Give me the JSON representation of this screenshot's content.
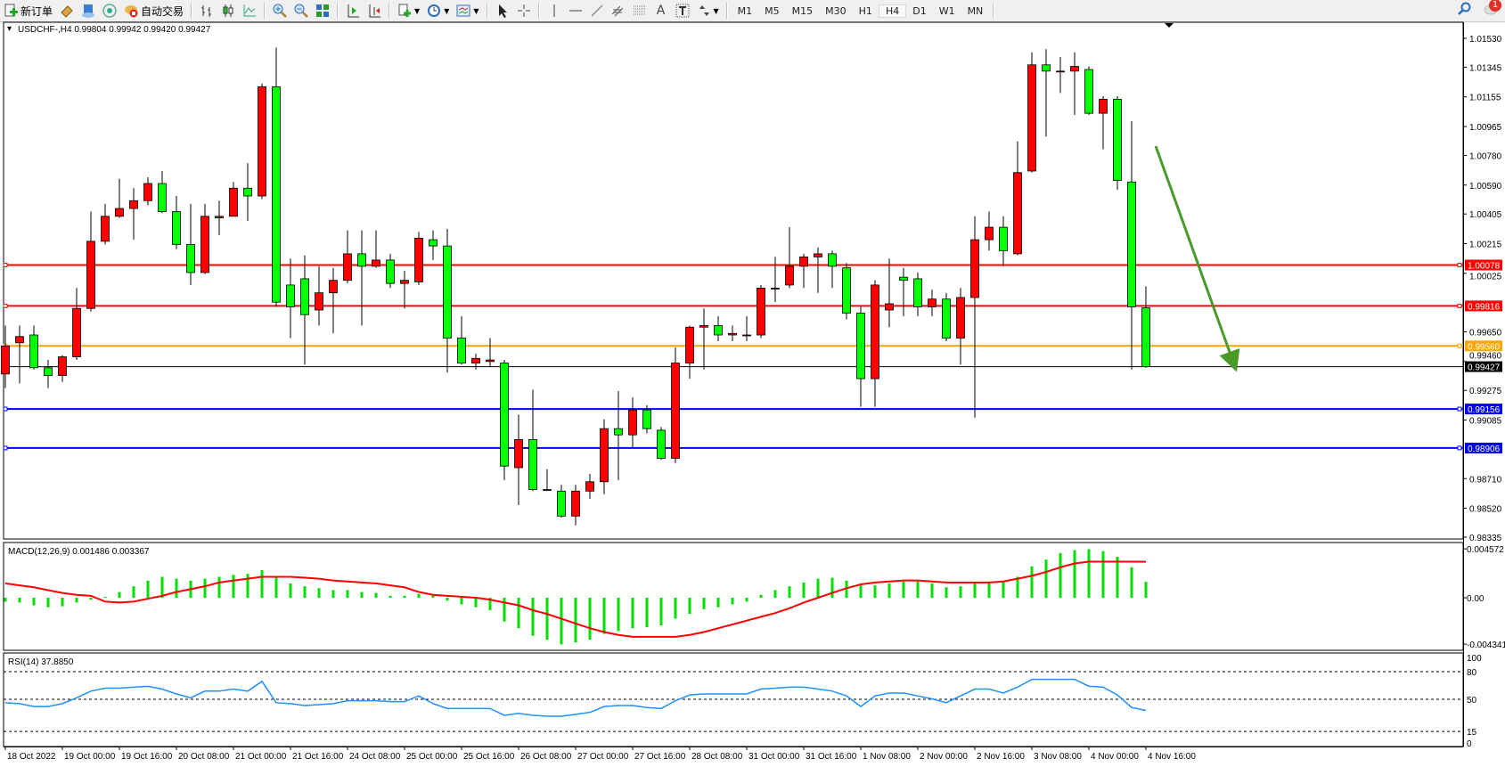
{
  "toolbar": {
    "new_order": "新订单",
    "auto_trading": "自动交易",
    "timeframes": [
      "M1",
      "M5",
      "M15",
      "M30",
      "H1",
      "H4",
      "D1",
      "W1",
      "MN"
    ],
    "active_timeframe": "H4",
    "notification_count": "1",
    "icons": [
      "new-order-icon",
      "history-icon",
      "market-watch-icon",
      "signal-icon",
      "auto-trading-icon",
      "bar-chart-icon",
      "candlestick-icon",
      "line-chart-icon",
      "zoom-in-icon",
      "zoom-out-icon",
      "tile-windows-icon",
      "auto-scroll-icon",
      "chart-shift-icon",
      "indicators-icon",
      "periods-icon",
      "templates-icon",
      "cursor-icon",
      "crosshair-icon",
      "vertical-line-icon",
      "horizontal-line-icon",
      "trendline-icon",
      "equidistant-channel-icon",
      "fibonacci-icon",
      "text-icon",
      "text-label-icon",
      "arrows-icon",
      "search-icon",
      "chat-icon"
    ]
  },
  "chart": {
    "header": "USDCHF-,H4  0.99804 0.99942 0.99420 0.99427",
    "macd_label": "MACD(12,26,9) 0.001486 0.003367",
    "rsi_label": "RSI(14) 37.8850",
    "colors": {
      "bull": "#ff0000",
      "bear": "#00ff00",
      "wick": "#000000",
      "macd_hist": "#00e000",
      "macd_signal": "#ff0000",
      "rsi": "#1e90ff",
      "arrow": "#4a9a2a"
    }
  },
  "chart_data": {
    "type": "candlestick",
    "symbol": "USDCHF-",
    "timeframe": "H4",
    "ohlc_order": [
      "open",
      "high",
      "low",
      "close"
    ],
    "candles": [
      [
        0.9938,
        0.9969,
        0.9929,
        0.9956
      ],
      [
        0.9958,
        0.9969,
        0.9932,
        0.9962
      ],
      [
        0.9963,
        0.9969,
        0.9941,
        0.9942
      ],
      [
        0.9942,
        0.9947,
        0.9929,
        0.9937
      ],
      [
        0.9937,
        0.995,
        0.9933,
        0.9949
      ],
      [
        0.9949,
        0.9993,
        0.9947,
        0.998
      ],
      [
        0.998,
        1.0042,
        0.9978,
        1.0023
      ],
      [
        1.0023,
        1.0047,
        1.0021,
        1.0039
      ],
      [
        1.0039,
        1.0063,
        1.0038,
        1.0044
      ],
      [
        1.0044,
        1.0057,
        1.0024,
        1.0049
      ],
      [
        1.0049,
        1.0064,
        1.0046,
        1.006
      ],
      [
        1.006,
        1.0068,
        1.0041,
        1.0042
      ],
      [
        1.0042,
        1.0052,
        1.0018,
        1.0021
      ],
      [
        1.0021,
        1.0047,
        0.9995,
        1.0003
      ],
      [
        1.0003,
        1.0047,
        1.0002,
        1.0039
      ],
      [
        1.0038,
        1.0049,
        1.0027,
        1.0039
      ],
      [
        1.0039,
        1.0061,
        1.0039,
        1.0057
      ],
      [
        1.0057,
        1.0073,
        1.0036,
        1.0052
      ],
      [
        1.0052,
        1.0124,
        1.005,
        1.0122
      ],
      [
        1.0122,
        1.0147,
        0.9981,
        0.9984
      ],
      [
        0.9995,
        1.0012,
        0.9961,
        0.9981
      ],
      [
        0.9999,
        1.0014,
        0.9944,
        0.9976
      ],
      [
        0.9979,
        1.0007,
        0.9969,
        0.999
      ],
      [
        0.999,
        1.0006,
        0.9964,
        0.9998
      ],
      [
        0.9998,
        1.003,
        0.9996,
        1.0015
      ],
      [
        1.0015,
        1.003,
        0.9969,
        1.0007
      ],
      [
        1.0007,
        1.003,
        1.0006,
        1.0011
      ],
      [
        1.0011,
        1.0015,
        0.9993,
        0.9996
      ],
      [
        0.9996,
        1.0004,
        0.998,
        0.9998
      ],
      [
        0.9997,
        1.0029,
        0.9995,
        1.0025
      ],
      [
        1.0024,
        1.003,
        1.0011,
        1.002
      ],
      [
        1.002,
        1.0031,
        0.9939,
        0.9961
      ],
      [
        0.9961,
        0.9975,
        0.9944,
        0.9945
      ],
      [
        0.9945,
        0.9951,
        0.9941,
        0.9948
      ],
      [
        0.9946,
        0.9961,
        0.9943,
        0.9947
      ],
      [
        0.9945,
        0.9947,
        0.987,
        0.9879
      ],
      [
        0.9878,
        0.9912,
        0.9854,
        0.9896
      ],
      [
        0.9896,
        0.9928,
        0.9863,
        0.9864
      ],
      [
        0.9864,
        0.9877,
        0.9863,
        0.9864
      ],
      [
        0.9863,
        0.9867,
        0.9846,
        0.9847
      ],
      [
        0.9847,
        0.9867,
        0.9841,
        0.9863
      ],
      [
        0.9863,
        0.9874,
        0.9858,
        0.9869
      ],
      [
        0.9869,
        0.9909,
        0.9861,
        0.9903
      ],
      [
        0.9903,
        0.9927,
        0.987,
        0.9899
      ],
      [
        0.9899,
        0.9923,
        0.9891,
        0.9915
      ],
      [
        0.9915,
        0.9918,
        0.99,
        0.9903
      ],
      [
        0.9902,
        0.9904,
        0.9883,
        0.9884
      ],
      [
        0.9884,
        0.9955,
        0.9881,
        0.9945
      ],
      [
        0.9945,
        0.9969,
        0.9935,
        0.9968
      ],
      [
        0.9968,
        0.998,
        0.9941,
        0.9969
      ],
      [
        0.9969,
        0.9975,
        0.9959,
        0.9963
      ],
      [
        0.9963,
        0.9969,
        0.9959,
        0.9964
      ],
      [
        0.9963,
        0.9975,
        0.9959,
        0.9963
      ],
      [
        0.9963,
        0.9995,
        0.9961,
        0.9993
      ],
      [
        0.9993,
        1.0013,
        0.9984,
        0.9993
      ],
      [
        0.9995,
        1.0032,
        0.9993,
        1.0007
      ],
      [
        1.0007,
        1.0015,
        0.9993,
        1.0013
      ],
      [
        1.0013,
        1.0019,
        0.999,
        1.0015
      ],
      [
        1.0015,
        1.0017,
        0.9993,
        1.0007
      ],
      [
        1.0006,
        1.0009,
        0.9973,
        0.9977
      ],
      [
        0.9977,
        0.9981,
        0.9917,
        0.9935
      ],
      [
        0.9935,
        0.9998,
        0.9917,
        0.9995
      ],
      [
        0.9979,
        1.0012,
        0.9968,
        0.9983
      ],
      [
        1.0,
        1.0006,
        0.9975,
        0.9998
      ],
      [
        0.9999,
        1.0003,
        0.9975,
        0.9981
      ],
      [
        0.9981,
        0.9992,
        0.9975,
        0.9986
      ],
      [
        0.9986,
        0.999,
        0.9959,
        0.9961
      ],
      [
        0.9961,
        0.9993,
        0.9944,
        0.9987
      ],
      [
        0.9987,
        1.0039,
        0.991,
        1.0024
      ],
      [
        1.0024,
        1.0042,
        1.0017,
        1.0032
      ],
      [
        1.0032,
        1.0039,
        1.0007,
        1.0017
      ],
      [
        1.0015,
        1.0087,
        1.0014,
        1.0067
      ],
      [
        1.0068,
        1.0144,
        1.0067,
        1.0136
      ],
      [
        1.0136,
        1.0146,
        1.009,
        1.0132
      ],
      [
        1.0132,
        1.0141,
        1.0118,
        1.0132
      ],
      [
        1.0132,
        1.0144,
        1.0104,
        1.0135
      ],
      [
        1.0133,
        1.0135,
        1.0104,
        1.0105
      ],
      [
        1.0105,
        1.0116,
        1.0082,
        1.0114
      ],
      [
        1.0114,
        1.0116,
        1.0056,
        1.0062
      ],
      [
        1.0061,
        1.01,
        0.9941,
        0.9981
      ],
      [
        0.99804,
        0.99942,
        0.9942,
        0.99427
      ]
    ],
    "ylim": [
      0.98335,
      1.0153
    ],
    "price_ticks": [
      "1.01530",
      "1.01345",
      "1.01155",
      "1.00965",
      "1.00780",
      "1.00590",
      "1.00405",
      "1.00215",
      "1.00025",
      "0.99650",
      "0.99460",
      "0.99275",
      "0.99085",
      "0.98710",
      "0.98520",
      "0.98335"
    ],
    "levels": [
      {
        "value": "1.00078",
        "color": "#ff0000"
      },
      {
        "value": "0.99816",
        "color": "#ff0000"
      },
      {
        "value": "0.99560",
        "color": "#ffa500"
      },
      {
        "value": "0.99156",
        "color": "#0000ff"
      },
      {
        "value": "0.98906",
        "color": "#0000ff"
      }
    ],
    "current_price": "0.99427",
    "time_labels": [
      "18 Oct 2022",
      "19 Oct 00:00",
      "19 Oct 16:00",
      "20 Oct 08:00",
      "21 Oct 00:00",
      "21 Oct 16:00",
      "24 Oct 08:00",
      "25 Oct 00:00",
      "25 Oct 16:00",
      "26 Oct 08:00",
      "27 Oct 00:00",
      "27 Oct 16:00",
      "28 Oct 08:00",
      "31 Oct 00:00",
      "31 Oct 16:00",
      "1 Nov 08:00",
      "2 Nov 00:00",
      "2 Nov 16:00",
      "3 Nov 08:00",
      "4 Nov 00:00",
      "4 Nov 16:00"
    ],
    "macd": {
      "params": "12,26,9",
      "ticks": [
        "0.004572",
        "0.00",
        "-0.004341"
      ],
      "ylim": [
        -0.004341,
        0.004572
      ],
      "histogram": [
        -0.00036,
        -0.00045,
        -0.00071,
        -0.00089,
        -0.0008,
        -0.00045,
        -0.00018,
        9e-05,
        0.00053,
        0.00107,
        0.0016,
        0.00196,
        0.00178,
        0.0016,
        0.00178,
        0.00196,
        0.00214,
        0.00223,
        0.00258,
        0.00187,
        0.00134,
        0.00107,
        0.00089,
        0.00071,
        0.00071,
        0.00053,
        0.00045,
        0.00018,
        0.00018,
        0.00036,
        0.00027,
        -0.00027,
        -0.00062,
        -0.00089,
        -0.00116,
        -0.00223,
        -0.00285,
        -0.00356,
        -0.00392,
        -0.00436,
        -0.00418,
        -0.00392,
        -0.00338,
        -0.00312,
        -0.00285,
        -0.00276,
        -0.00258,
        -0.00196,
        -0.00151,
        -0.00107,
        -0.00089,
        -0.00062,
        -0.00036,
        0.00027,
        0.00071,
        0.00107,
        0.00142,
        0.00178,
        0.00187,
        0.0016,
        0.00116,
        0.00116,
        0.00134,
        0.00151,
        0.00151,
        0.00134,
        0.00098,
        0.00107,
        0.00142,
        0.00151,
        0.00151,
        0.00196,
        0.00294,
        0.00356,
        0.00418,
        0.00445,
        0.00454,
        0.00436,
        0.00383,
        0.00285,
        0.001486
      ],
      "signal": [
        0.00134,
        0.00116,
        0.00098,
        0.00071,
        0.00045,
        0.00027,
        0.00018,
        -0.00036,
        -0.00045,
        -0.00036,
        -9e-05,
        0.00018,
        0.00054,
        0.0008,
        0.00107,
        0.00143,
        0.00161,
        0.00178,
        0.00196,
        0.00196,
        0.00196,
        0.00187,
        0.00178,
        0.00161,
        0.00152,
        0.00143,
        0.00134,
        0.00116,
        0.00098,
        0.00054,
        0.00027,
        0.00018,
        9e-05,
        0.0,
        -0.00018,
        -0.00045,
        -0.00071,
        -0.00116,
        -0.00152,
        -0.00196,
        -0.00241,
        -0.00285,
        -0.00321,
        -0.00348,
        -0.00366,
        -0.00366,
        -0.00366,
        -0.00366,
        -0.00348,
        -0.00321,
        -0.00285,
        -0.0025,
        -0.00214,
        -0.00178,
        -0.00143,
        -0.00098,
        -0.00045,
        0.0,
        0.00045,
        0.00089,
        0.00125,
        0.00143,
        0.00152,
        0.00161,
        0.00161,
        0.00152,
        0.00143,
        0.00143,
        0.00143,
        0.00143,
        0.00152,
        0.00178,
        0.00205,
        0.00241,
        0.00285,
        0.00321,
        0.00337,
        0.00337,
        0.00337,
        0.00337,
        0.003367
      ]
    },
    "rsi": {
      "period": 14,
      "ticks": [
        "100",
        "80",
        "50",
        "15",
        "0"
      ],
      "levels": [
        80,
        50,
        15
      ],
      "ylim": [
        0,
        100
      ],
      "values": [
        46.3,
        45.3,
        42.1,
        42.1,
        45.3,
        51.6,
        58.9,
        62.1,
        62.1,
        63.2,
        64.2,
        61.1,
        55.8,
        51.6,
        58.9,
        58.9,
        61.1,
        58.9,
        69.5,
        46.3,
        45.3,
        43.2,
        44.2,
        45.3,
        48.4,
        48.4,
        48.4,
        47.4,
        47.4,
        53.7,
        45.3,
        40.0,
        40.0,
        40.0,
        40.0,
        32.6,
        34.7,
        32.6,
        31.6,
        31.6,
        33.7,
        35.8,
        42.1,
        43.2,
        43.2,
        41.1,
        40.0,
        48.4,
        54.7,
        55.8,
        55.8,
        55.8,
        55.8,
        61.1,
        62.1,
        63.2,
        63.2,
        61.1,
        58.9,
        53.7,
        42.1,
        53.7,
        56.8,
        56.8,
        53.7,
        50.5,
        46.3,
        53.7,
        61.1,
        61.1,
        56.8,
        63.2,
        71.6,
        71.6,
        71.6,
        71.6,
        64.2,
        63.2,
        54.7,
        41.1,
        37.885
      ]
    }
  }
}
